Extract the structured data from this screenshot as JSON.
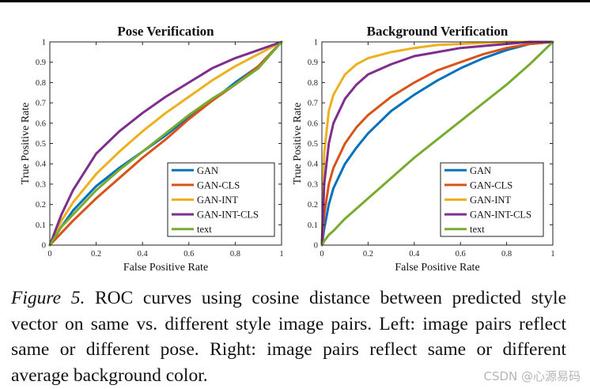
{
  "caption": {
    "figure_label": "Figure 5.",
    "text": "ROC curves using cosine distance between predicted style vector on same vs. different style image pairs. Left: image pairs reflect same or different pose. Right: image pairs reflect same or different average background color."
  },
  "watermark": "CSDN @心源易码",
  "colors": {
    "GAN": "#0072bd",
    "GAN-CLS": "#d95319",
    "GAN-INT": "#edb120",
    "GAN-INT-CLS": "#7e2f8e",
    "text": "#77ac30"
  },
  "chart_data": [
    {
      "type": "line",
      "title": "Pose Verification",
      "xlabel": "False Positive Rate",
      "ylabel": "True Positive Rate",
      "xlim": [
        0,
        1
      ],
      "ylim": [
        0,
        1
      ],
      "xticks": [
        0,
        0.2,
        0.4,
        0.6,
        0.8,
        1
      ],
      "xtick_labels": [
        "0",
        "0.2",
        "0.4",
        "0.6",
        "0.8",
        "1"
      ],
      "yticks": [
        0,
        0.1,
        0.2,
        0.3,
        0.4,
        0.5,
        0.6,
        0.7,
        0.8,
        0.9,
        1
      ],
      "ytick_labels": [
        "0",
        "0.1",
        "0.2",
        "0.3",
        "0.4",
        "0.5",
        "0.6",
        "0.7",
        "0.8",
        "0.9",
        "1"
      ],
      "legend_position": "lower-right",
      "series": [
        {
          "name": "GAN",
          "x": [
            0,
            0.05,
            0.1,
            0.2,
            0.3,
            0.4,
            0.5,
            0.6,
            0.7,
            0.8,
            0.9,
            1
          ],
          "y": [
            0,
            0.09,
            0.17,
            0.29,
            0.38,
            0.46,
            0.54,
            0.63,
            0.71,
            0.8,
            0.88,
            1
          ]
        },
        {
          "name": "GAN-CLS",
          "x": [
            0,
            0.05,
            0.1,
            0.2,
            0.3,
            0.4,
            0.5,
            0.6,
            0.7,
            0.8,
            0.9,
            1
          ],
          "y": [
            0,
            0.06,
            0.12,
            0.23,
            0.33,
            0.43,
            0.52,
            0.62,
            0.71,
            0.79,
            0.88,
            1
          ]
        },
        {
          "name": "GAN-INT",
          "x": [
            0,
            0.05,
            0.1,
            0.2,
            0.3,
            0.4,
            0.5,
            0.6,
            0.7,
            0.8,
            0.9,
            1
          ],
          "y": [
            0,
            0.12,
            0.21,
            0.35,
            0.46,
            0.56,
            0.65,
            0.73,
            0.81,
            0.88,
            0.94,
            1
          ]
        },
        {
          "name": "GAN-INT-CLS",
          "x": [
            0,
            0.05,
            0.1,
            0.2,
            0.3,
            0.4,
            0.5,
            0.6,
            0.7,
            0.8,
            0.9,
            1
          ],
          "y": [
            0,
            0.15,
            0.27,
            0.45,
            0.56,
            0.65,
            0.73,
            0.8,
            0.87,
            0.92,
            0.96,
            1
          ]
        },
        {
          "name": "text",
          "x": [
            0,
            0.05,
            0.1,
            0.2,
            0.3,
            0.4,
            0.5,
            0.6,
            0.7,
            0.8,
            0.9,
            1
          ],
          "y": [
            0,
            0.09,
            0.15,
            0.27,
            0.37,
            0.46,
            0.55,
            0.64,
            0.72,
            0.79,
            0.87,
            1
          ]
        }
      ]
    },
    {
      "type": "line",
      "title": "Background Verification",
      "xlabel": "False Positive Rate",
      "ylabel": "True Positive Rate",
      "xlim": [
        0,
        1
      ],
      "ylim": [
        0,
        1
      ],
      "xticks": [
        0,
        0.2,
        0.4,
        0.6,
        0.8,
        1
      ],
      "xtick_labels": [
        "0",
        "0.2",
        "0.4",
        "0.6",
        "0.8",
        "1"
      ],
      "yticks": [
        0,
        0.1,
        0.2,
        0.3,
        0.4,
        0.5,
        0.6,
        0.7,
        0.8,
        0.9,
        1
      ],
      "ytick_labels": [
        "0",
        "0.1",
        "0.2",
        "0.3",
        "0.4",
        "0.5",
        "0.6",
        "0.7",
        "0.8",
        "0.9",
        "1"
      ],
      "legend_position": "lower-right",
      "series": [
        {
          "name": "GAN",
          "x": [
            0,
            0.01,
            0.03,
            0.05,
            0.1,
            0.15,
            0.2,
            0.3,
            0.4,
            0.5,
            0.6,
            0.7,
            0.8,
            0.9,
            1
          ],
          "y": [
            0,
            0.08,
            0.2,
            0.28,
            0.4,
            0.48,
            0.55,
            0.66,
            0.74,
            0.81,
            0.87,
            0.92,
            0.96,
            0.99,
            1
          ]
        },
        {
          "name": "GAN-CLS",
          "x": [
            0,
            0.01,
            0.03,
            0.05,
            0.1,
            0.15,
            0.2,
            0.3,
            0.4,
            0.5,
            0.6,
            0.7,
            0.8,
            0.9,
            1
          ],
          "y": [
            0,
            0.15,
            0.3,
            0.38,
            0.5,
            0.58,
            0.64,
            0.73,
            0.8,
            0.86,
            0.9,
            0.94,
            0.97,
            0.99,
            1
          ]
        },
        {
          "name": "GAN-INT",
          "x": [
            0,
            0.01,
            0.03,
            0.05,
            0.1,
            0.15,
            0.2,
            0.3,
            0.4,
            0.5,
            0.6,
            0.7,
            0.8,
            0.9,
            1
          ],
          "y": [
            0,
            0.45,
            0.66,
            0.74,
            0.84,
            0.89,
            0.92,
            0.95,
            0.97,
            0.985,
            0.99,
            0.995,
            1,
            1,
            1
          ]
        },
        {
          "name": "GAN-INT-CLS",
          "x": [
            0,
            0.01,
            0.03,
            0.05,
            0.1,
            0.15,
            0.2,
            0.3,
            0.4,
            0.5,
            0.6,
            0.7,
            0.8,
            0.9,
            1
          ],
          "y": [
            0,
            0.3,
            0.5,
            0.6,
            0.72,
            0.79,
            0.84,
            0.89,
            0.93,
            0.95,
            0.97,
            0.98,
            0.99,
            1,
            1
          ]
        },
        {
          "name": "text",
          "x": [
            0,
            0.01,
            0.03,
            0.05,
            0.1,
            0.15,
            0.2,
            0.3,
            0.4,
            0.5,
            0.6,
            0.7,
            0.8,
            0.9,
            1
          ],
          "y": [
            0,
            0.02,
            0.05,
            0.07,
            0.13,
            0.18,
            0.23,
            0.33,
            0.43,
            0.52,
            0.61,
            0.7,
            0.79,
            0.89,
            1
          ]
        }
      ]
    }
  ]
}
